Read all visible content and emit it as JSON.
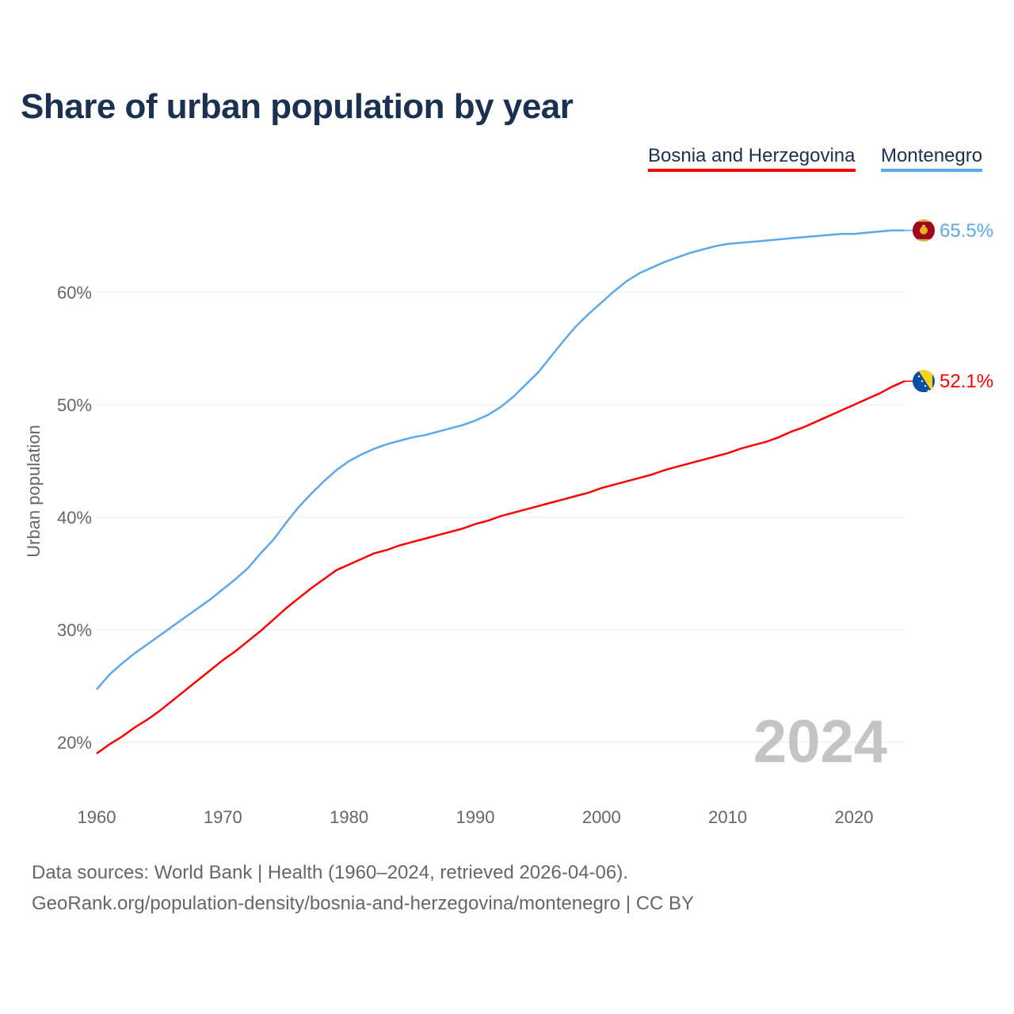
{
  "chart_data": {
    "type": "line",
    "title": "Share of urban population by year",
    "ylabel": "Urban population",
    "xlabel": "",
    "xlim": [
      1960,
      2024
    ],
    "ylim": [
      15,
      68
    ],
    "x_ticks": [
      1960,
      1970,
      1980,
      1990,
      2000,
      2010,
      2020
    ],
    "y_ticks": [
      20,
      30,
      40,
      50,
      60
    ],
    "y_tick_labels": [
      "20%",
      "30%",
      "40%",
      "50%",
      "60%"
    ],
    "grid": true,
    "legend_position": "top-right",
    "year_watermark": "2024",
    "x": [
      1960,
      1961,
      1962,
      1963,
      1964,
      1965,
      1966,
      1967,
      1968,
      1969,
      1970,
      1971,
      1972,
      1973,
      1974,
      1975,
      1976,
      1977,
      1978,
      1979,
      1980,
      1981,
      1982,
      1983,
      1984,
      1985,
      1986,
      1987,
      1988,
      1989,
      1990,
      1991,
      1992,
      1993,
      1994,
      1995,
      1996,
      1997,
      1998,
      1999,
      2000,
      2001,
      2002,
      2003,
      2004,
      2005,
      2006,
      2007,
      2008,
      2009,
      2010,
      2011,
      2012,
      2013,
      2014,
      2015,
      2016,
      2017,
      2018,
      2019,
      2020,
      2021,
      2022,
      2023,
      2024
    ],
    "series": [
      {
        "name": "Bosnia and Herzegovina",
        "color": "#ff0000",
        "end_label": "52.1%",
        "values": [
          19.0,
          19.8,
          20.5,
          21.3,
          22.0,
          22.8,
          23.7,
          24.6,
          25.5,
          26.4,
          27.3,
          28.1,
          29.0,
          29.9,
          30.9,
          31.9,
          32.8,
          33.7,
          34.5,
          35.3,
          35.8,
          36.3,
          36.8,
          37.1,
          37.5,
          37.8,
          38.1,
          38.4,
          38.7,
          39.0,
          39.4,
          39.7,
          40.1,
          40.4,
          40.7,
          41.0,
          41.3,
          41.6,
          41.9,
          42.2,
          42.6,
          42.9,
          43.2,
          43.5,
          43.8,
          44.2,
          44.5,
          44.8,
          45.1,
          45.4,
          45.7,
          46.1,
          46.4,
          46.7,
          47.1,
          47.6,
          48.0,
          48.5,
          49.0,
          49.5,
          50.0,
          50.5,
          51.0,
          51.6,
          52.1
        ]
      },
      {
        "name": "Montenegro",
        "color": "#5ca8ec",
        "end_label": "65.5%",
        "values": [
          24.7,
          26.0,
          27.0,
          27.9,
          28.7,
          29.5,
          30.3,
          31.1,
          31.9,
          32.7,
          33.6,
          34.5,
          35.5,
          36.8,
          38.0,
          39.5,
          40.9,
          42.1,
          43.2,
          44.2,
          45.0,
          45.6,
          46.1,
          46.5,
          46.8,
          47.1,
          47.3,
          47.6,
          47.9,
          48.2,
          48.6,
          49.1,
          49.8,
          50.7,
          51.8,
          52.9,
          54.3,
          55.7,
          57.0,
          58.1,
          59.1,
          60.1,
          61.0,
          61.7,
          62.2,
          62.7,
          63.1,
          63.5,
          63.8,
          64.1,
          64.3,
          64.4,
          64.5,
          64.6,
          64.7,
          64.8,
          64.9,
          65.0,
          65.1,
          65.2,
          65.2,
          65.3,
          65.4,
          65.5,
          65.5
        ]
      }
    ]
  },
  "footer": {
    "line1": "Data sources: World Bank | Health (1960–2024, retrieved 2026-04-06).",
    "line2": "GeoRank.org/population-density/bosnia-and-herzegovina/montenegro | CC BY"
  }
}
